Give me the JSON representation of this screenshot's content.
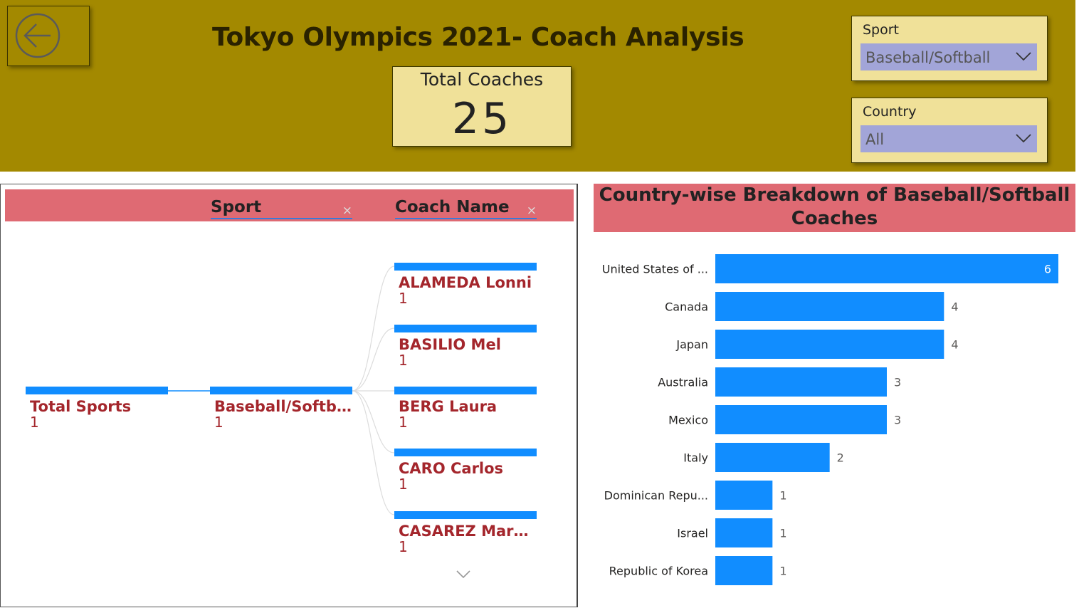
{
  "header": {
    "title": "Tokyo Olympics 2021- Coach Analysis",
    "back_button_icon": "back-arrow-icon",
    "background_color": "#a38900"
  },
  "kpi": {
    "label": "Total Coaches",
    "value": "25"
  },
  "slicers": {
    "sport": {
      "label": "Sport",
      "value": "Baseball/Softball"
    },
    "country": {
      "label": "Country",
      "value": "All"
    }
  },
  "tree": {
    "levels": [
      {
        "label": "Sport",
        "remove_icon": "×"
      },
      {
        "label": "Coach Name",
        "remove_icon": "×"
      }
    ],
    "root": {
      "name": "Total Sports",
      "count": "1"
    },
    "sport": {
      "name": "Baseball/Softball",
      "count": "1"
    },
    "coaches": [
      {
        "name": "ALAMEDA Lonni",
        "count": "1"
      },
      {
        "name": "BASILIO Mel",
        "count": "1"
      },
      {
        "name": "BERG Laura",
        "count": "1"
      },
      {
        "name": "CARO Carlos",
        "count": "1"
      },
      {
        "name": "CASAREZ Mary L...",
        "count": "1"
      }
    ],
    "bar_color": "#118dff",
    "text_color": "#a4262c"
  },
  "chart_data": {
    "type": "bar",
    "orientation": "horizontal",
    "title": "Country-wise Breakdown of Baseball/Softball Coaches",
    "title_lines": [
      "Country-wise Breakdown of Baseball/Softball",
      "Coaches"
    ],
    "categories": [
      "United States of ...",
      "Canada",
      "Japan",
      "Australia",
      "Mexico",
      "Italy",
      "Dominican Repu...",
      "Israel",
      "Republic of Korea"
    ],
    "values": [
      6,
      4,
      4,
      3,
      3,
      2,
      1,
      1,
      1
    ],
    "xlim": [
      0,
      6
    ],
    "grid": false,
    "bar_color": "#118dff",
    "title_background": "#df6a73"
  }
}
